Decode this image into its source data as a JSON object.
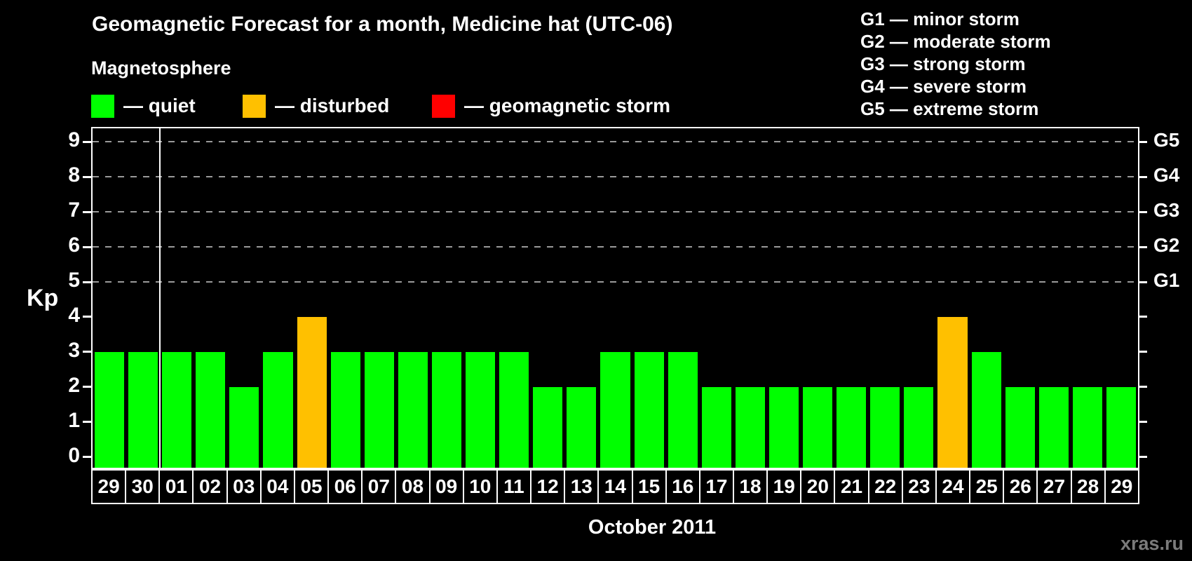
{
  "title": "Geomagnetic Forecast for a month, Medicine hat (UTC-06)",
  "subtitle": "Magnetosphere",
  "legend": {
    "items": [
      {
        "name": "quiet",
        "label": "— quiet",
        "color": "#00ff00"
      },
      {
        "name": "disturbed",
        "label": "— disturbed",
        "color": "#ffc000"
      },
      {
        "name": "storm",
        "label": "— geomagnetic storm",
        "color": "#ff0000"
      }
    ]
  },
  "g_scale_legend": [
    "G1 — minor storm",
    "G2 — moderate storm",
    "G3 — strong storm",
    "G4 — severe storm",
    "G5 — extreme storm"
  ],
  "watermark": "xras.ru",
  "chart_data": {
    "type": "bar",
    "title": "Geomagnetic Forecast for a month, Medicine hat (UTC-06)",
    "xlabel": "October 2011",
    "ylabel": "Kp",
    "ylim": [
      0,
      9.4
    ],
    "yticks": [
      0,
      1,
      2,
      3,
      4,
      5,
      6,
      7,
      8,
      9
    ],
    "gridlines_at": [
      5,
      6,
      7,
      8,
      9
    ],
    "grid": "dashed, only at G-storm levels (Kp 5-9)",
    "right_axis_labels": [
      {
        "kp": 5,
        "label": "G1"
      },
      {
        "kp": 6,
        "label": "G2"
      },
      {
        "kp": 7,
        "label": "G3"
      },
      {
        "kp": 8,
        "label": "G4"
      },
      {
        "kp": 9,
        "label": "G5"
      }
    ],
    "categories": [
      "29",
      "30",
      "01",
      "02",
      "03",
      "04",
      "05",
      "06",
      "07",
      "08",
      "09",
      "10",
      "11",
      "12",
      "13",
      "14",
      "15",
      "16",
      "17",
      "18",
      "19",
      "20",
      "21",
      "22",
      "23",
      "24",
      "25",
      "26",
      "27",
      "28",
      "29"
    ],
    "values": [
      3,
      3,
      3,
      3,
      2,
      3,
      4,
      3,
      3,
      3,
      3,
      3,
      3,
      2,
      2,
      3,
      3,
      3,
      2,
      2,
      2,
      2,
      2,
      2,
      2,
      4,
      3,
      2,
      2,
      2,
      2
    ],
    "statuses": [
      "quiet",
      "quiet",
      "quiet",
      "quiet",
      "quiet",
      "quiet",
      "disturbed",
      "quiet",
      "quiet",
      "quiet",
      "quiet",
      "quiet",
      "quiet",
      "quiet",
      "quiet",
      "quiet",
      "quiet",
      "quiet",
      "quiet",
      "quiet",
      "quiet",
      "quiet",
      "quiet",
      "quiet",
      "quiet",
      "disturbed",
      "quiet",
      "quiet",
      "quiet",
      "quiet",
      "quiet"
    ],
    "month_separator_after_index": 1,
    "colors": {
      "quiet": "#00ff00",
      "disturbed": "#ffc000",
      "storm": "#ff0000"
    }
  }
}
